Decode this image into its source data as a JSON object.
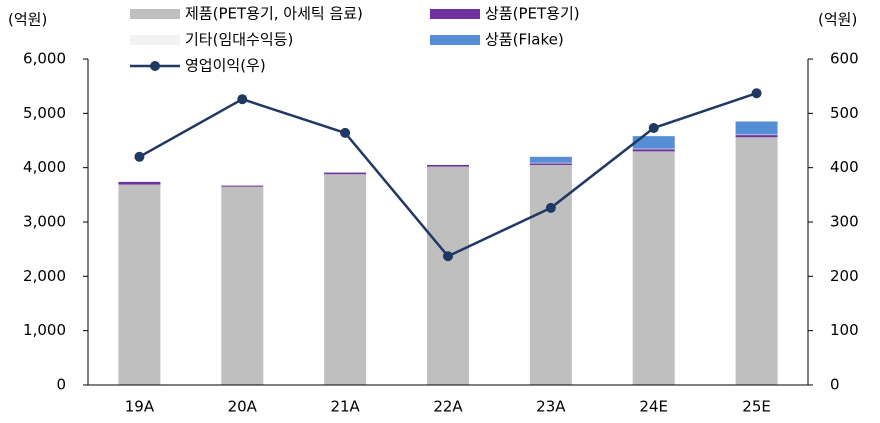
{
  "chart_data": {
    "type": "bar",
    "y_unit": "(억원)",
    "y2_unit": "(억원)",
    "categories": [
      "19A",
      "20A",
      "21A",
      "22A",
      "23A",
      "24E",
      "25E"
    ],
    "series": [
      {
        "name": "제품(PET용기, 아세틱 음료)",
        "color": "#bfbfbf",
        "values": [
          3690,
          3650,
          3880,
          4020,
          4050,
          4300,
          4560
        ]
      },
      {
        "name": "상품(PET용기)",
        "color": "#7030a0",
        "values": [
          50,
          20,
          30,
          30,
          30,
          40,
          40
        ]
      },
      {
        "name": "기타(임대수익등)",
        "color": "#f2f2f2",
        "values": [
          10,
          10,
          10,
          10,
          10,
          10,
          10
        ]
      },
      {
        "name": "상품(Flake)",
        "color": "#558ed5",
        "values": [
          0,
          0,
          0,
          0,
          110,
          230,
          240
        ]
      },
      {
        "name": "영업이익(우)",
        "type": "line",
        "axis": "y2",
        "color": "#1f3864",
        "values": [
          420,
          526,
          464,
          237,
          326,
          473,
          537
        ]
      }
    ],
    "ylim": [
      0,
      6000
    ],
    "yticks": [
      0,
      {
        "value": 1000,
        "label": "1,000"
      },
      {
        "value": 2000,
        "label": "2,000"
      },
      {
        "value": 3000,
        "label": "3,000"
      },
      {
        "value": 4000,
        "label": "4,000"
      },
      {
        "value": 5000,
        "label": "5,000"
      },
      {
        "value": 6000,
        "label": "6,000"
      }
    ],
    "y2lim": [
      0,
      600
    ],
    "y2ticks": [
      0,
      100,
      200,
      300,
      400,
      500,
      600
    ],
    "grid": false
  }
}
